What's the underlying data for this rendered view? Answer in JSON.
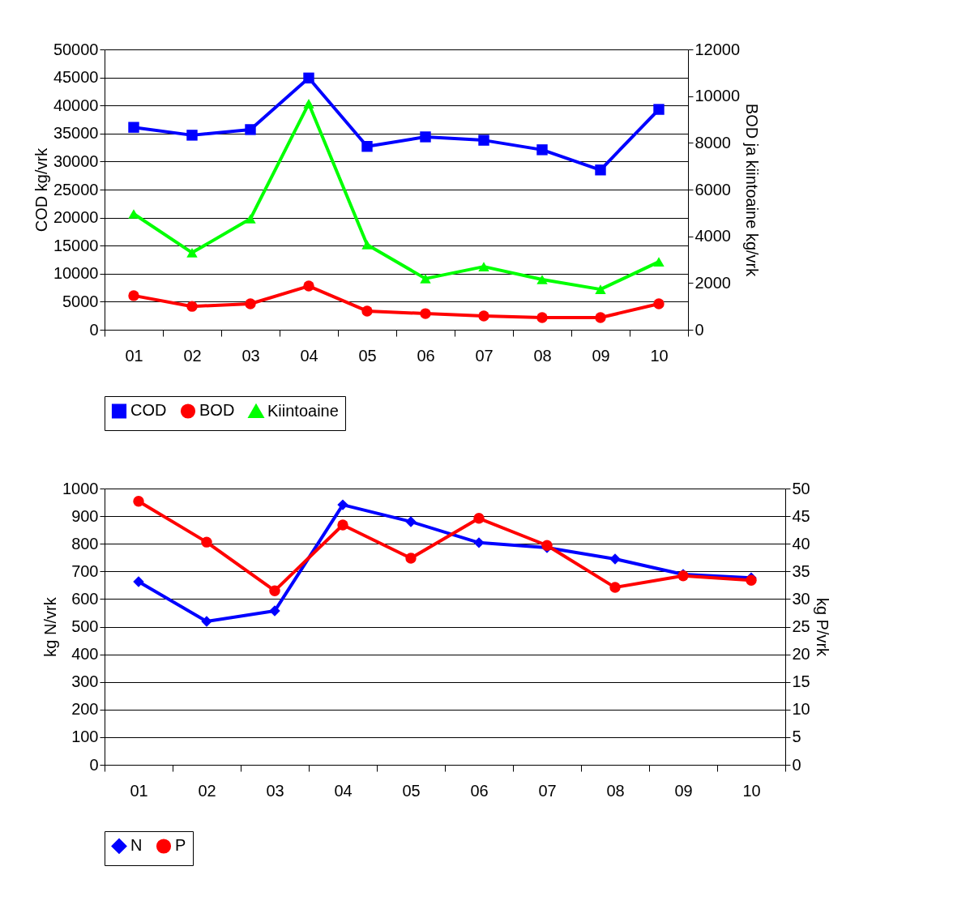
{
  "chart_data": [
    {
      "type": "line",
      "categories": [
        "01",
        "02",
        "03",
        "04",
        "05",
        "06",
        "07",
        "08",
        "09",
        "10"
      ],
      "ylabel": "COD kg/vrk",
      "y2label": "BOD ja kiintoaine kg/vrk",
      "ylim": [
        0,
        50000
      ],
      "yticks": [
        0,
        5000,
        10000,
        15000,
        20000,
        25000,
        30000,
        35000,
        40000,
        45000,
        50000
      ],
      "y2lim": [
        0,
        12000
      ],
      "y2ticks": [
        0,
        2000,
        4000,
        6000,
        8000,
        10000,
        12000
      ],
      "grid": "y",
      "legend": "bottom",
      "series": [
        {
          "name": "COD",
          "color": "#0000ff",
          "marker": "square",
          "values": [
            36100,
            34700,
            35700,
            44900,
            32700,
            34400,
            33800,
            32100,
            28500,
            39300
          ]
        },
        {
          "name": "BOD",
          "color": "#ff0000",
          "marker": "circle",
          "axis": "y2",
          "values": [
            1460,
            1000,
            1110,
            1870,
            800,
            690,
            590,
            520,
            520,
            1110
          ]
        },
        {
          "name": "Kiintoaine",
          "color": "#00ff00",
          "marker": "triangle",
          "axis": "y2",
          "values": [
            4960,
            3300,
            4750,
            9680,
            3640,
            2190,
            2700,
            2150,
            1730,
            2910
          ]
        }
      ]
    },
    {
      "type": "line",
      "categories": [
        "01",
        "02",
        "03",
        "04",
        "05",
        "06",
        "07",
        "08",
        "09",
        "10"
      ],
      "ylabel": "kg N/vrk",
      "y2label": "kg P/vrk",
      "ylim": [
        0,
        1000
      ],
      "yticks": [
        0,
        100,
        200,
        300,
        400,
        500,
        600,
        700,
        800,
        900,
        1000
      ],
      "y2lim": [
        0,
        50
      ],
      "y2ticks": [
        0,
        5,
        10,
        15,
        20,
        25,
        30,
        35,
        40,
        45,
        50
      ],
      "grid": "y",
      "legend": "bottom",
      "series": [
        {
          "name": "N",
          "color": "#0000ff",
          "marker": "diamond",
          "values": [
            663,
            519,
            557,
            941,
            880,
            804,
            786,
            745,
            689,
            677
          ]
        },
        {
          "name": "P",
          "color": "#ff0000",
          "marker": "circle",
          "axis": "y2",
          "values": [
            47.7,
            40.3,
            31.5,
            43.4,
            37.4,
            44.6,
            39.7,
            32.1,
            34.2,
            33.4
          ]
        }
      ]
    }
  ]
}
